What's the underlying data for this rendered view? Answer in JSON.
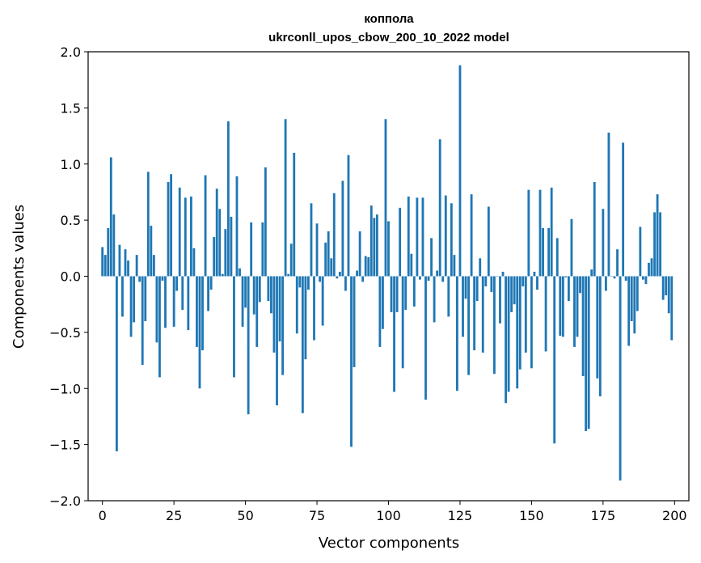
{
  "chart_data": {
    "type": "bar",
    "title_lines": [
      "коппола",
      "ukrconll_upos_cbow_200_10_2022 model"
    ],
    "xlabel": "Vector components",
    "ylabel": "Components values",
    "xlim": [
      -5,
      205
    ],
    "ylim": [
      -2.0,
      2.0
    ],
    "xticks": [
      0,
      25,
      50,
      75,
      100,
      125,
      150,
      175,
      200
    ],
    "xtick_labels": [
      "0",
      "25",
      "50",
      "75",
      "100",
      "125",
      "150",
      "175",
      "200"
    ],
    "yticks": [
      -2.0,
      -1.5,
      -1.0,
      -0.5,
      0.0,
      0.5,
      1.0,
      1.5,
      2.0
    ],
    "ytick_labels": [
      "−2.0",
      "−1.5",
      "−1.0",
      "−0.5",
      "0.0",
      "0.5",
      "1.0",
      "1.5",
      "2.0"
    ],
    "bar_color": "#1f77b4",
    "grid": false,
    "x": [
      0,
      1,
      2,
      3,
      4,
      5,
      6,
      7,
      8,
      9,
      10,
      11,
      12,
      13,
      14,
      15,
      16,
      17,
      18,
      19,
      20,
      21,
      22,
      23,
      24,
      25,
      26,
      27,
      28,
      29,
      30,
      31,
      32,
      33,
      34,
      35,
      36,
      37,
      38,
      39,
      40,
      41,
      42,
      43,
      44,
      45,
      46,
      47,
      48,
      49,
      50,
      51,
      52,
      53,
      54,
      55,
      56,
      57,
      58,
      59,
      60,
      61,
      62,
      63,
      64,
      65,
      66,
      67,
      68,
      69,
      70,
      71,
      72,
      73,
      74,
      75,
      76,
      77,
      78,
      79,
      80,
      81,
      82,
      83,
      84,
      85,
      86,
      87,
      88,
      89,
      90,
      91,
      92,
      93,
      94,
      95,
      96,
      97,
      98,
      99,
      100,
      101,
      102,
      103,
      104,
      105,
      106,
      107,
      108,
      109,
      110,
      111,
      112,
      113,
      114,
      115,
      116,
      117,
      118,
      119,
      120,
      121,
      122,
      123,
      124,
      125,
      126,
      127,
      128,
      129,
      130,
      131,
      132,
      133,
      134,
      135,
      136,
      137,
      138,
      139,
      140,
      141,
      142,
      143,
      144,
      145,
      146,
      147,
      148,
      149,
      150,
      151,
      152,
      153,
      154,
      155,
      156,
      157,
      158,
      159,
      160,
      161,
      162,
      163,
      164,
      165,
      166,
      167,
      168,
      169,
      170,
      171,
      172,
      173,
      174,
      175,
      176,
      177,
      178,
      179,
      180,
      181,
      182,
      183,
      184,
      185,
      186,
      187,
      188,
      189,
      190,
      191,
      192,
      193,
      194,
      195,
      196,
      197,
      198,
      199
    ],
    "values": [
      0.26,
      0.19,
      0.43,
      1.06,
      0.55,
      -1.56,
      0.28,
      -0.36,
      0.24,
      0.14,
      -0.54,
      -0.41,
      0.19,
      -0.05,
      -0.79,
      -0.4,
      0.93,
      0.45,
      0.19,
      -0.59,
      -0.9,
      -0.04,
      -0.46,
      0.84,
      0.91,
      -0.45,
      -0.13,
      0.79,
      -0.3,
      0.7,
      -0.48,
      0.71,
      0.25,
      -0.63,
      -1.0,
      -0.66,
      0.9,
      -0.31,
      -0.12,
      0.35,
      0.78,
      0.6,
      0.02,
      0.42,
      1.38,
      0.53,
      -0.9,
      0.89,
      0.07,
      -0.45,
      -0.28,
      -1.23,
      0.48,
      -0.34,
      -0.63,
      -0.23,
      0.48,
      0.97,
      -0.22,
      -0.33,
      -0.68,
      -1.15,
      -0.58,
      -0.88,
      1.4,
      0.02,
      0.29,
      1.1,
      -0.51,
      -0.1,
      -1.22,
      -0.74,
      -0.12,
      0.65,
      -0.57,
      0.47,
      -0.05,
      -0.44,
      0.3,
      0.4,
      0.16,
      0.74,
      -0.02,
      0.04,
      0.85,
      -0.13,
      1.08,
      -1.52,
      -0.81,
      0.05,
      0.4,
      -0.05,
      0.18,
      0.17,
      0.63,
      0.52,
      0.55,
      -0.63,
      -0.47,
      1.4,
      0.49,
      -0.32,
      -1.03,
      -0.32,
      0.61,
      -0.82,
      -0.3,
      0.71,
      0.2,
      -0.27,
      0.7,
      -0.03,
      0.7,
      -1.1,
      -0.04,
      0.34,
      -0.41,
      0.05,
      1.22,
      -0.05,
      0.72,
      -0.36,
      0.65,
      0.19,
      -1.02,
      1.88,
      -0.54,
      -0.2,
      -0.88,
      0.73,
      -0.66,
      -0.22,
      0.16,
      -0.68,
      -0.09,
      0.62,
      -0.14,
      -0.87,
      0.0,
      -0.42,
      0.04,
      -1.13,
      -1.03,
      -0.32,
      -0.25,
      -1.0,
      -0.83,
      -0.09,
      -0.68,
      0.77,
      -0.82,
      0.04,
      -0.12,
      0.77,
      0.43,
      -0.67,
      0.43,
      0.79,
      -1.49,
      0.34,
      -0.53,
      -0.54,
      -0.01,
      -0.22,
      0.51,
      -0.63,
      -0.54,
      -0.15,
      -0.89,
      -1.38,
      -1.36,
      0.06,
      0.84,
      -0.91,
      -1.07,
      0.6,
      -0.13,
      1.28,
      0.0,
      -0.02,
      0.24,
      -1.82,
      1.19,
      -0.04,
      -0.62,
      -0.4,
      -0.51,
      -0.31,
      0.44,
      -0.03,
      -0.07,
      0.12,
      0.16,
      0.57,
      0.73,
      0.57,
      -0.21,
      -0.17,
      -0.33,
      -0.57
    ]
  }
}
